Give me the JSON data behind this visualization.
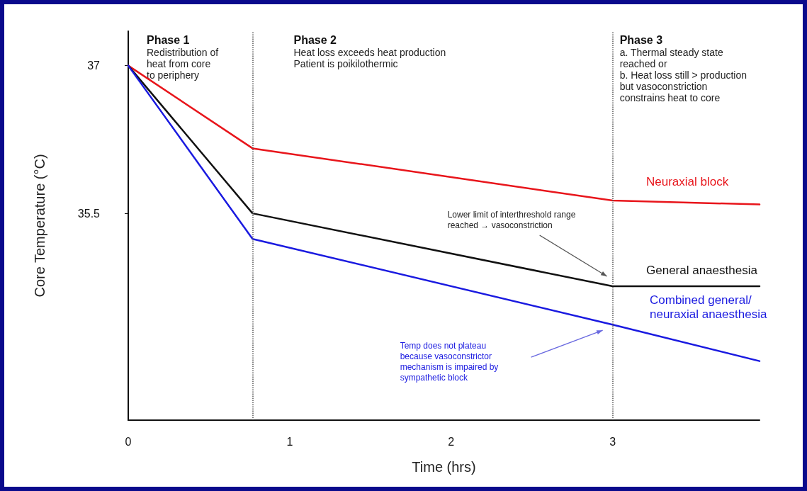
{
  "chart_data": {
    "type": "line",
    "xlabel": "Time (hrs)",
    "ylabel": "Core Temperature (°C)",
    "x": [
      0,
      0.77,
      3,
      3.91
    ],
    "series": [
      {
        "name": "Neuraxial block",
        "color": "#e8151b",
        "values": [
          37.0,
          36.16,
          35.63,
          35.59
        ]
      },
      {
        "name": "General anaesthesia",
        "color": "#111111",
        "values": [
          37.0,
          35.5,
          34.76,
          34.76
        ]
      },
      {
        "name": "Combined general/neuraxial anaesthesia",
        "color": "#1a1ae0",
        "values": [
          37.0,
          35.24,
          34.37,
          34.0
        ]
      }
    ],
    "xlim": [
      0,
      3.91
    ],
    "xticks": [
      0,
      1,
      2,
      3
    ],
    "ylim": [
      33.4,
      37.35
    ],
    "yticks": [
      37.0,
      {
        "value": 35.5,
        "label": "35.5"
      }
    ],
    "ref_lines": [
      {
        "axis": "x",
        "value": 0.77,
        "color": "#555555",
        "line_style": "dotted"
      },
      {
        "axis": "x",
        "value": 3,
        "color": "#555555",
        "line_style": "dotted"
      }
    ],
    "annotations": [
      "Phase 1\nRedistribution of\nheat from core\nto periphery",
      "Phase 2\nHeat loss exceeds heat production\nPatient is poikilothermic",
      "Phase 3\na. Thermal steady state\nreached or\nb. Heat loss still > production\nbut vasoconstriction\nconstrains heat to core",
      "Lower limit of interthreshold range\nreached → vasoconstriction",
      "Temp does not plateau\nbecause vasoconstrictor\nmechanism is impaired by\nsympathetic block"
    ],
    "grid": false,
    "legend": false,
    "marker": "none",
    "line_style": "solid"
  }
}
